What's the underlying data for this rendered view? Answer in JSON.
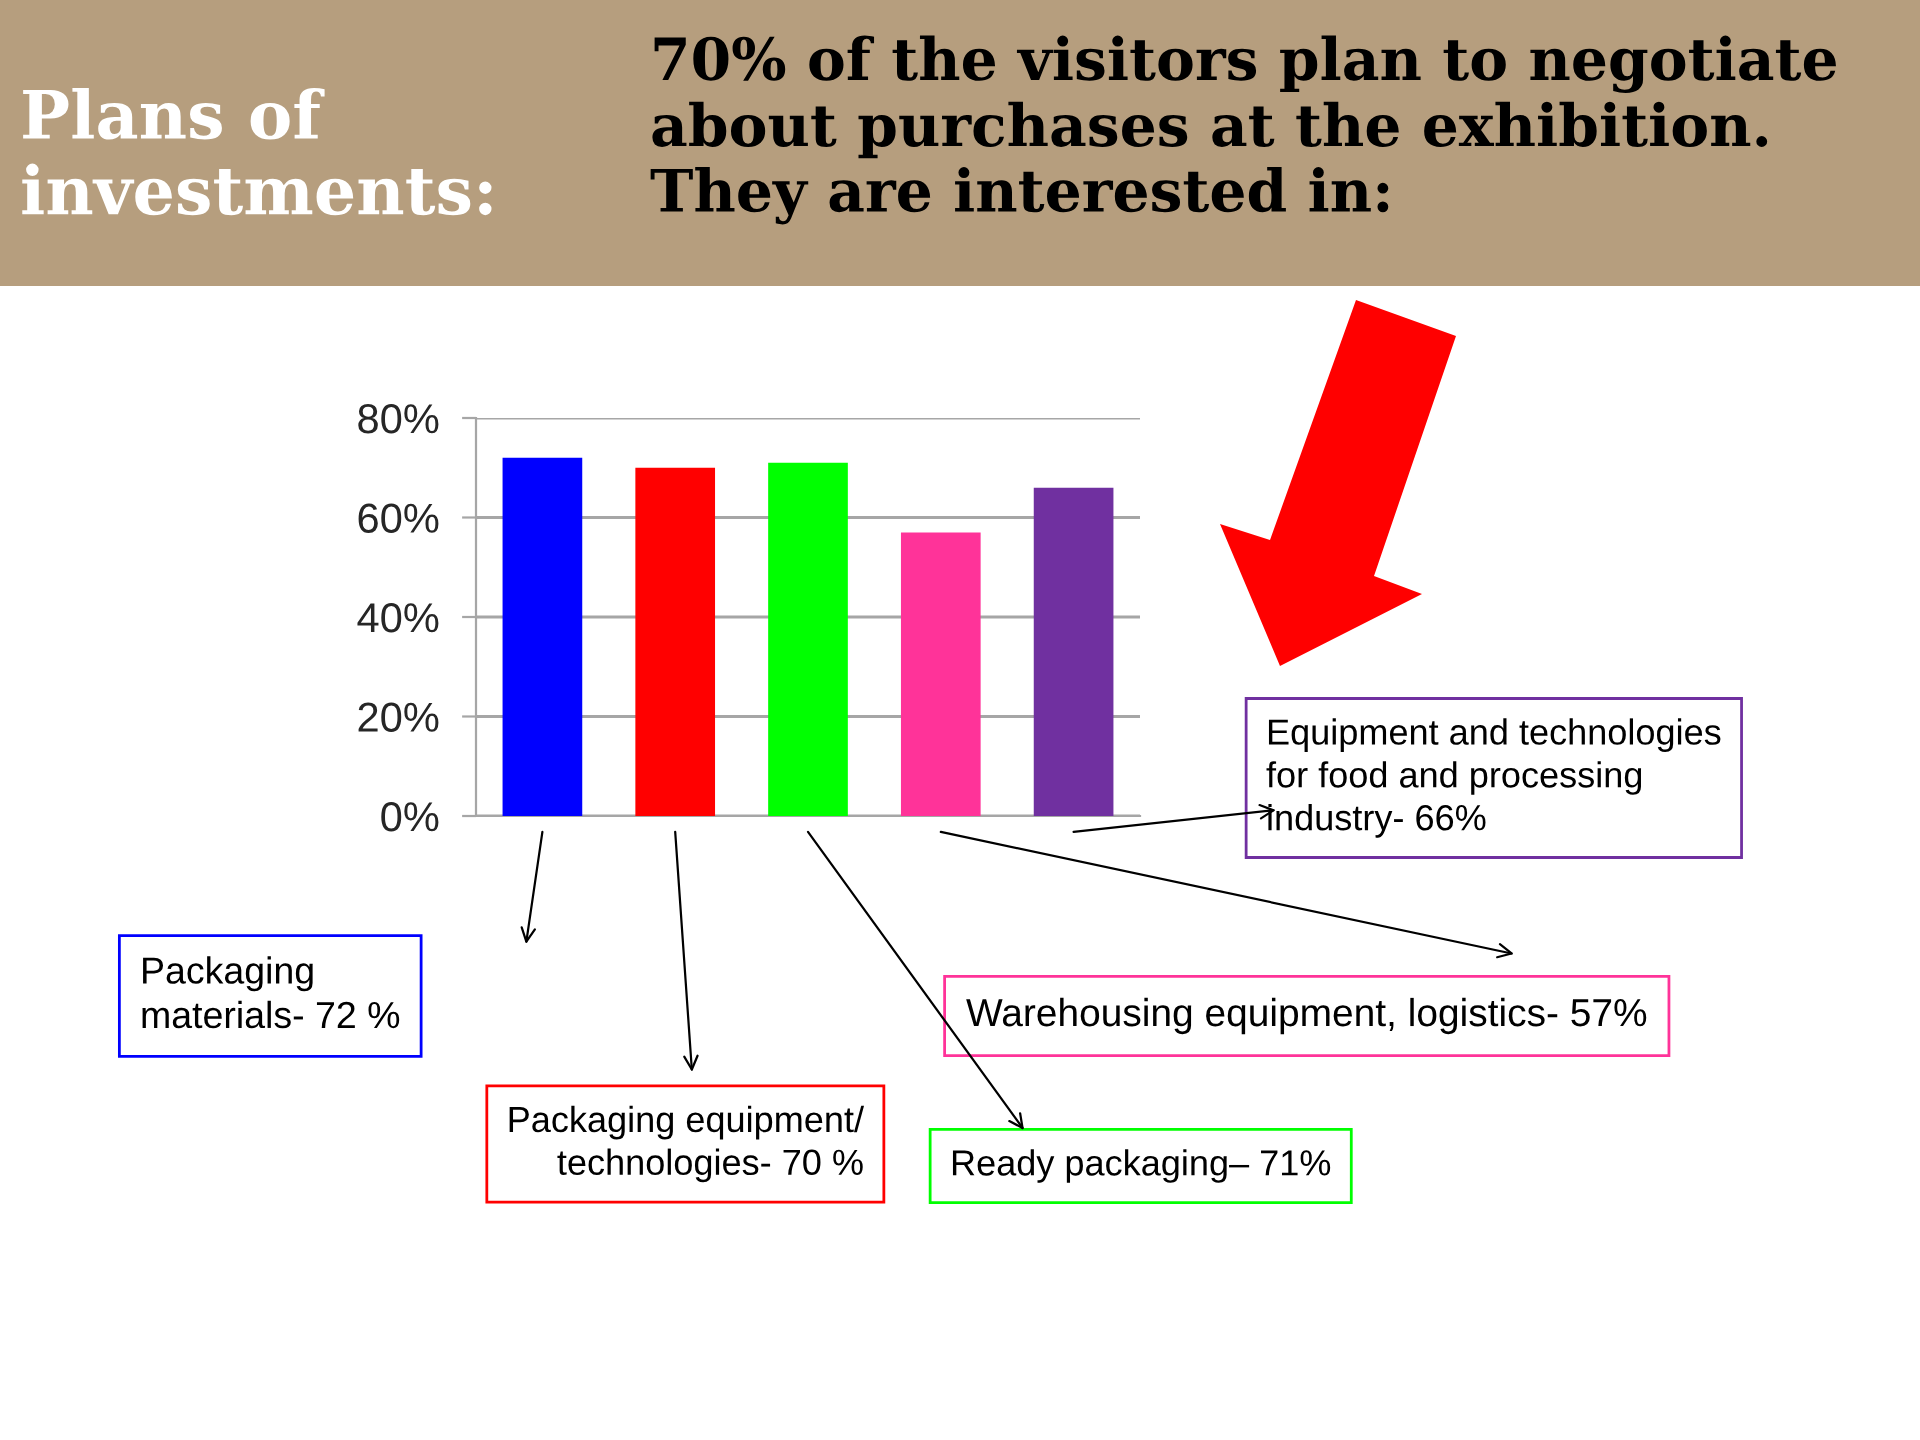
{
  "chart_data": {
    "type": "bar",
    "title": "Plans of\ninvestments:",
    "subtitle": "70% of the visitors plan to negotiate\nabout purchases at the exhibition.\nThey are interested in:",
    "categories": [
      null,
      null,
      null,
      null,
      null
    ],
    "values": [
      72,
      70,
      71,
      57,
      66
    ],
    "colors": [
      "#0000ff",
      "#ff0000",
      "#00ff00",
      "#ff3399",
      "#7030a0"
    ],
    "ylim": [
      0,
      80
    ],
    "yticks": [
      {
        "value": 0,
        "label": "0%"
      },
      {
        "value": 20,
        "label": "20%"
      },
      {
        "value": 40,
        "label": "40%"
      },
      {
        "value": 60,
        "label": "60%"
      },
      {
        "value": 80,
        "label": "80%"
      }
    ],
    "grid": "y",
    "tick_labels": "y",
    "annotations": [
      "Packaging\nmaterials- 72 %",
      "Packaging equipment/\ntechnologies- 70 %",
      "Ready packaging– 71%",
      "Warehousing equipment, logistics- 57%",
      "Equipment and technologies\nfor food and processing\nindustry- 66%"
    ]
  }
}
